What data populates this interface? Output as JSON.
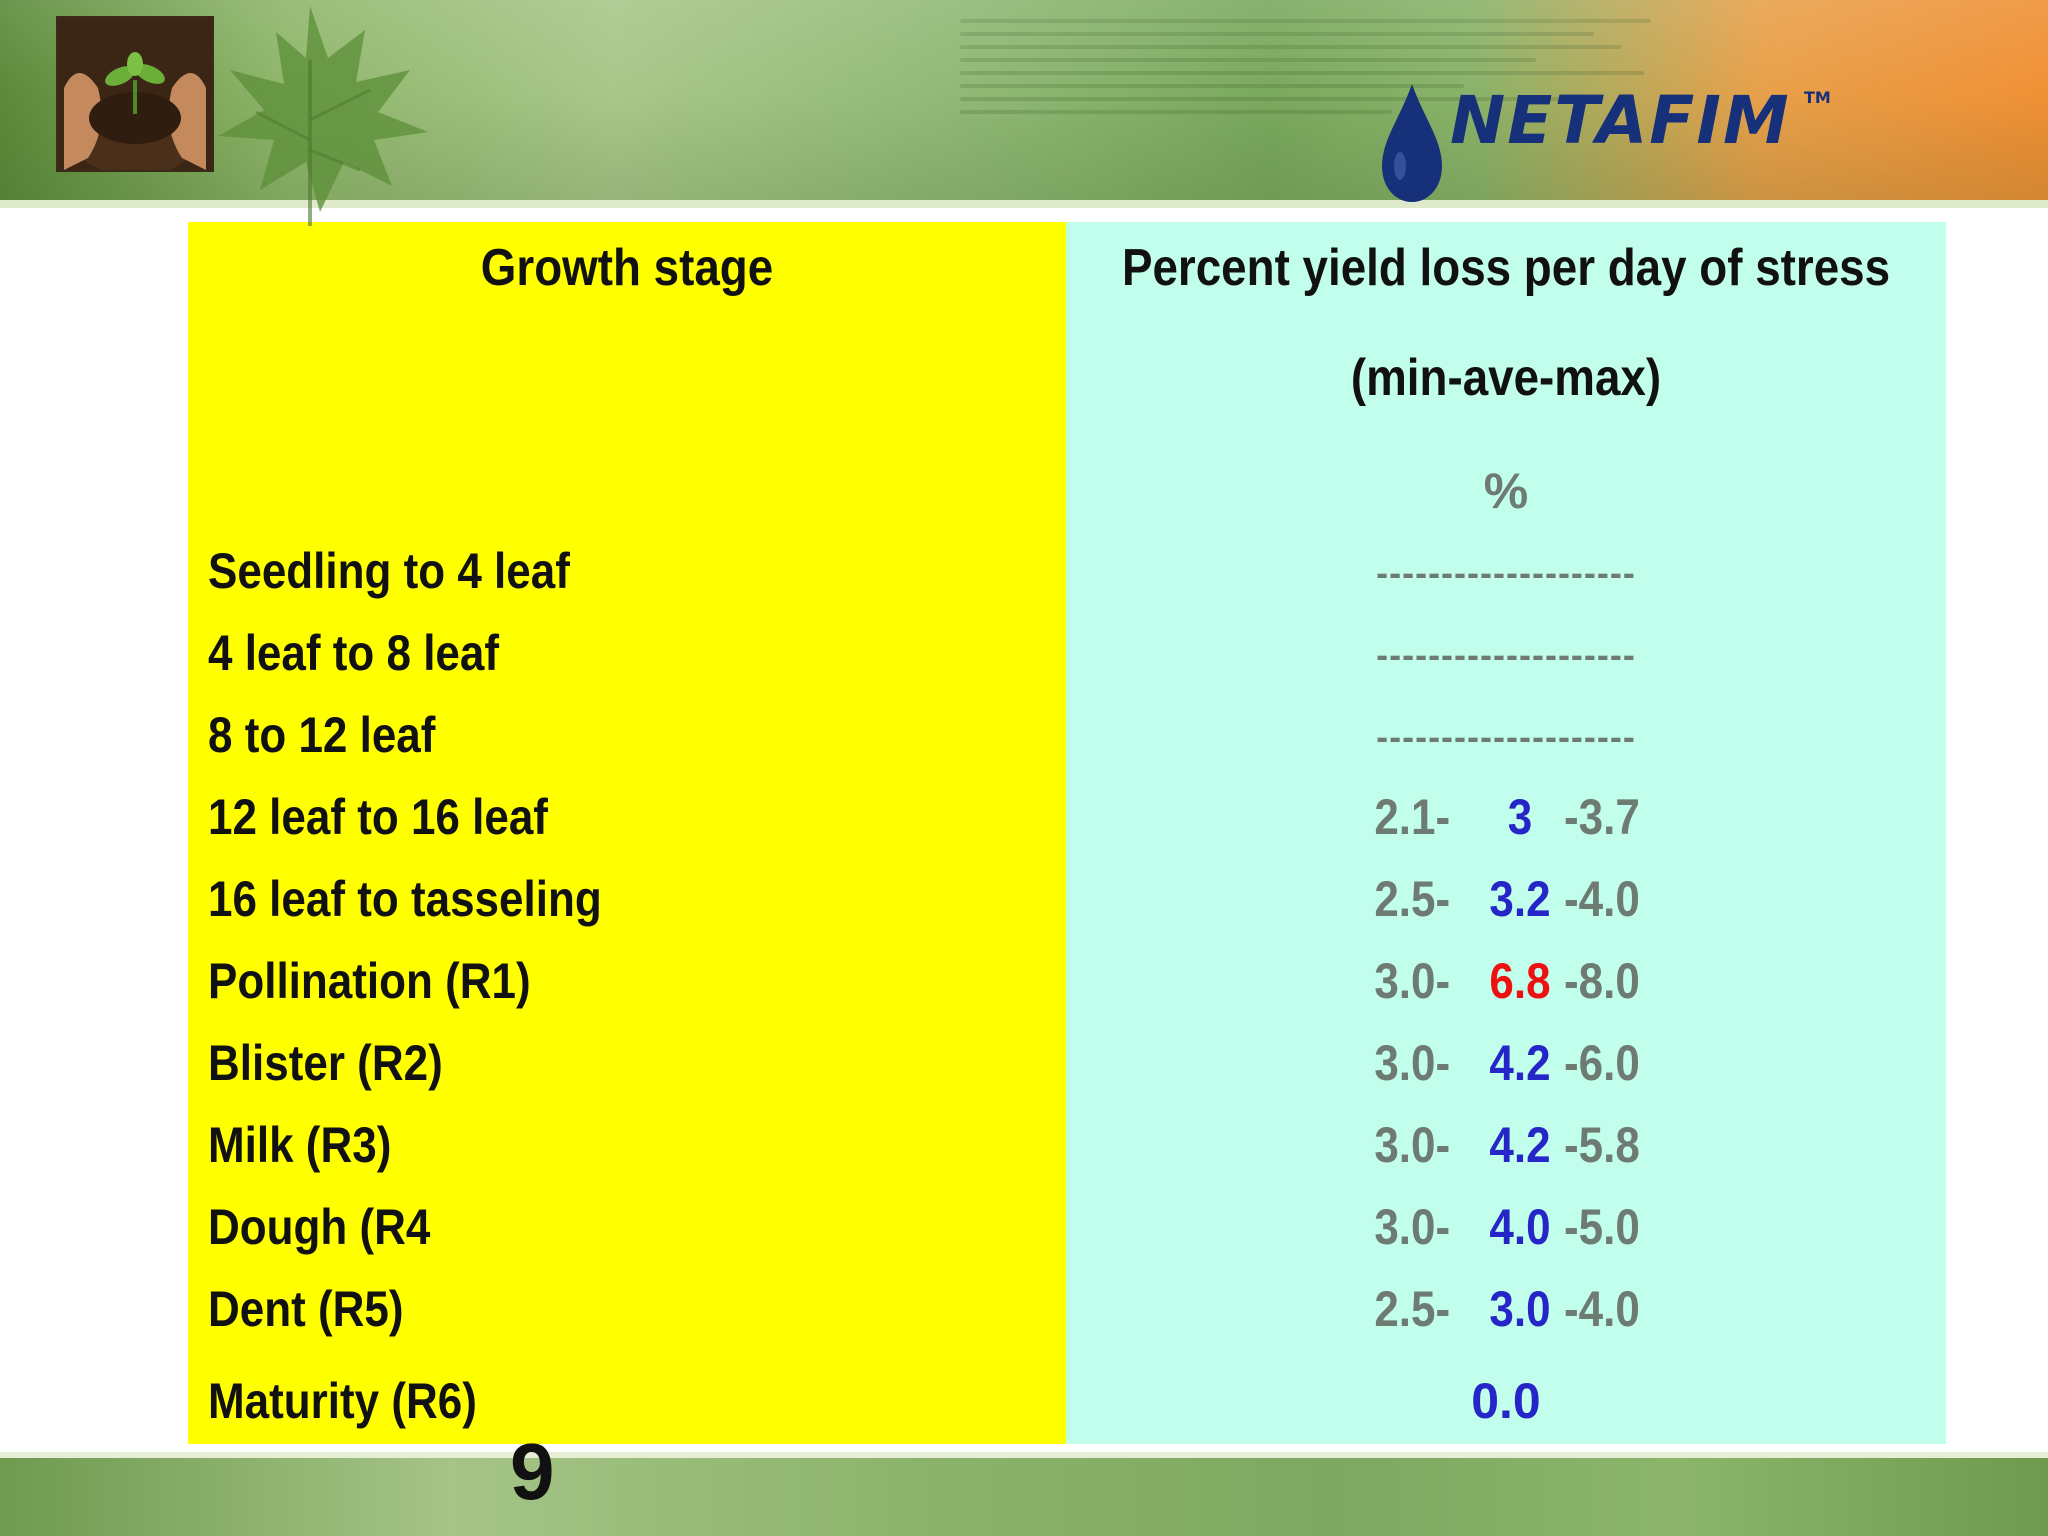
{
  "brand": {
    "logo_text": "NETAFIM",
    "trademark": "TM",
    "logo_color": "#16307a"
  },
  "colors": {
    "left_panel": "#ffff00",
    "right_panel": "#c2feec",
    "min_max_text": "#6d7b72",
    "average_text": "#2626c8",
    "highlight_text": "#ee1111"
  },
  "table": {
    "col1_header": "Growth stage",
    "col2_header_line1": "Percent yield loss per day of stress",
    "col2_header_line2": "(min-ave-max)",
    "unit": "%",
    "rows": [
      {
        "stage": "Seedling to 4 leaf",
        "dashes": "--------------------"
      },
      {
        "stage": "4 leaf to 8 leaf",
        "dashes": "--------------------"
      },
      {
        "stage": "8 to 12 leaf",
        "dashes": "--------------------"
      },
      {
        "stage": "12 leaf to 16 leaf",
        "min": "2.1-",
        "ave": "3",
        "max": "-3.7"
      },
      {
        "stage": "16 leaf to tasseling",
        "min": "2.5-",
        "ave": "3.2",
        "max": "-4.0"
      },
      {
        "stage": "Pollination (R1)",
        "min": "3.0-",
        "ave": "6.8",
        "max": "-8.0"
      },
      {
        "stage": "Blister (R2)",
        "min": "3.0-",
        "ave": "4.2",
        "max": "-6.0"
      },
      {
        "stage": "Milk  (R3)",
        "min": "3.0-",
        "ave": "4.2",
        "max": "-5.8"
      },
      {
        "stage": "Dough (R4",
        "min": "3.0-",
        "ave": "4.0",
        "max": "-5.0"
      },
      {
        "stage": "Dent (R5)",
        "min": "2.5-",
        "ave": "3.0",
        "max": "-4.0"
      },
      {
        "stage": "Maturity (R6)",
        "value": "0.0"
      }
    ]
  },
  "slide_number": "9"
}
